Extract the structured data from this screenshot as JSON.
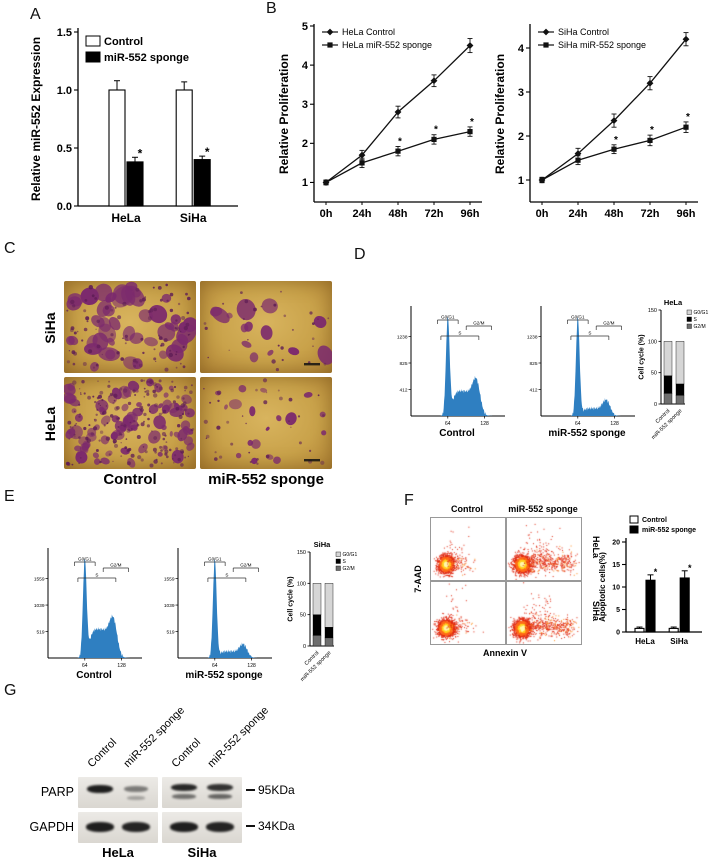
{
  "colors": {
    "histogram": "#2f7fc1",
    "colony": "#7c2a6d",
    "colony_bg": "#c9a24a",
    "flow_core": "#fff8b0",
    "flow_point": "#e02810"
  },
  "panels": {
    "a": "A",
    "b": "B",
    "c": "C",
    "d": "D",
    "e": "E",
    "f": "F",
    "g": "G"
  },
  "panel_c": {
    "row_labels": [
      "SiHa",
      "HeLa"
    ],
    "col_labels": [
      "Control",
      "miR-552 sponge"
    ]
  },
  "panel_f": {
    "col_labels": [
      "Control",
      "miR-552 sponge"
    ],
    "row_labels": [
      "HeLa",
      "SiHa"
    ],
    "xlabel": "Annexin V",
    "ylabel": "7-AAD"
  },
  "panel_g": {
    "lane_labels": [
      "Control",
      "miR-552 sponge",
      "Control",
      "miR-552 sponge"
    ],
    "row_labels": [
      "PARP",
      "GAPDH"
    ],
    "markers": [
      "95KDa",
      "34KDa"
    ],
    "group_labels": [
      "HeLa",
      "SiHa"
    ]
  },
  "chart_data": [
    {
      "id": "mir552_expression",
      "type": "bar",
      "panel": "A",
      "ylabel": "Relative miR-552 Expression",
      "categories": [
        "HeLa",
        "SiHa"
      ],
      "series": [
        {
          "name": "Control",
          "fill": "#ffffff",
          "values": [
            1.0,
            1.0
          ],
          "errors": [
            0.08,
            0.07
          ]
        },
        {
          "name": "miR-552 sponge",
          "fill": "#000000",
          "values": [
            0.38,
            0.4
          ],
          "errors": [
            0.04,
            0.03
          ],
          "sig": [
            "*",
            "*"
          ]
        }
      ],
      "ylim": [
        0,
        1.5
      ],
      "yticks": [
        "0.0",
        "0.5",
        "1.0",
        "1.5"
      ],
      "legend_position": "top-left"
    },
    {
      "id": "hela_proliferation",
      "type": "line",
      "panel": "B",
      "ylabel": "Relative Proliferation",
      "x": [
        "0h",
        "24h",
        "48h",
        "72h",
        "96h"
      ],
      "series": [
        {
          "name": "HeLa Control",
          "marker": "diamond",
          "values": [
            1.0,
            1.7,
            2.8,
            3.6,
            4.5
          ],
          "errors": [
            0.06,
            0.12,
            0.15,
            0.15,
            0.18
          ]
        },
        {
          "name": "HeLa miR-552 sponge",
          "marker": "square",
          "values": [
            1.0,
            1.5,
            1.8,
            2.1,
            2.3
          ],
          "errors": [
            0.06,
            0.12,
            0.12,
            0.12,
            0.12
          ],
          "sig": [
            "",
            "",
            "*",
            "*",
            "*"
          ]
        }
      ],
      "ylim": [
        0.5,
        5
      ],
      "yticks": [
        1,
        2,
        3,
        4,
        5
      ],
      "legend_position": "top-left"
    },
    {
      "id": "siha_proliferation",
      "type": "line",
      "panel": "B",
      "ylabel": "Relative Proliferation",
      "x": [
        "0h",
        "24h",
        "48h",
        "72h",
        "96h"
      ],
      "series": [
        {
          "name": "SiHa Control",
          "marker": "diamond",
          "values": [
            1.0,
            1.6,
            2.35,
            3.2,
            4.2
          ],
          "errors": [
            0.06,
            0.12,
            0.15,
            0.15,
            0.15
          ]
        },
        {
          "name": "SiHa miR-552 sponge",
          "marker": "square",
          "values": [
            1.0,
            1.45,
            1.7,
            1.9,
            2.2
          ],
          "errors": [
            0.06,
            0.1,
            0.1,
            0.12,
            0.12
          ],
          "sig": [
            "",
            "",
            "*",
            "*",
            "*"
          ]
        }
      ],
      "ylim": [
        0.5,
        4.5
      ],
      "yticks": [
        1,
        2,
        3,
        4
      ],
      "legend_position": "top-left"
    },
    {
      "id": "hela_cc_control_hist",
      "type": "flow-histogram",
      "panel": "D",
      "cell_line": "HeLa",
      "title": "Control",
      "xmax": 160,
      "xticks": [
        64,
        128
      ],
      "ymax": 1650,
      "yticks": [
        412,
        825,
        1238
      ],
      "gates": [
        {
          "label": "G0/G1",
          "from": 46,
          "to": 82,
          "dy": 10
        },
        {
          "label": "S",
          "from": 52,
          "to": 118,
          "dy": 26
        },
        {
          "label": "G2/M",
          "from": 96,
          "to": 140,
          "dy": 16
        }
      ],
      "profile": {
        "s": 0.26,
        "g2": 0.3
      }
    },
    {
      "id": "hela_cc_sponge_hist",
      "type": "flow-histogram",
      "panel": "D",
      "cell_line": "HeLa",
      "title": "miR-552 sponge",
      "xmax": 160,
      "xticks": [
        64,
        128
      ],
      "ymax": 1650,
      "yticks": [
        412,
        825,
        1238
      ],
      "gates": [
        {
          "label": "G0/G1",
          "from": 46,
          "to": 82,
          "dy": 10
        },
        {
          "label": "S",
          "from": 52,
          "to": 118,
          "dy": 26
        },
        {
          "label": "G2/M",
          "from": 96,
          "to": 140,
          "dy": 16
        }
      ],
      "profile": {
        "s": 0.08,
        "g2": 0.14
      }
    },
    {
      "id": "hela_cellcycle",
      "type": "stacked-bar",
      "panel": "D",
      "title": "HeLa",
      "ylabel": "Cell cycle (%)",
      "categories": [
        "Control",
        "miR-552 sponge"
      ],
      "series": [
        {
          "name": "G0/G1",
          "color": "#d6d6d6",
          "values": [
            55,
            68
          ]
        },
        {
          "name": "S",
          "color": "#000000",
          "values": [
            28,
            18
          ]
        },
        {
          "name": "G2/M",
          "color": "#6e6e6e",
          "values": [
            17,
            14
          ]
        }
      ],
      "ylim": [
        0,
        150
      ],
      "yticks": [
        0,
        50,
        100,
        150
      ]
    },
    {
      "id": "siha_cc_control_hist",
      "type": "flow-histogram",
      "panel": "E",
      "cell_line": "SiHa",
      "title": "Control",
      "xmax": 160,
      "xticks": [
        64,
        128
      ],
      "ymax": 2080,
      "yticks": [
        519,
        1039,
        1559
      ],
      "gates": [
        {
          "label": "G0/G1",
          "from": 46,
          "to": 82,
          "dy": 10
        },
        {
          "label": "S",
          "from": 52,
          "to": 118,
          "dy": 26
        },
        {
          "label": "G2/M",
          "from": 96,
          "to": 140,
          "dy": 16
        }
      ],
      "profile": {
        "s": 0.3,
        "g2": 0.32
      }
    },
    {
      "id": "siha_cc_sponge_hist",
      "type": "flow-histogram",
      "panel": "E",
      "cell_line": "SiHa",
      "title": "miR-552 sponge",
      "xmax": 160,
      "xticks": [
        64,
        128
      ],
      "ymax": 2080,
      "yticks": [
        519,
        1039,
        1559
      ],
      "gates": [
        {
          "label": "G0/G1",
          "from": 46,
          "to": 82,
          "dy": 10
        },
        {
          "label": "S",
          "from": 52,
          "to": 118,
          "dy": 26
        },
        {
          "label": "G2/M",
          "from": 96,
          "to": 140,
          "dy": 16
        }
      ],
      "profile": {
        "s": 0.07,
        "g2": 0.12
      }
    },
    {
      "id": "siha_cellcycle",
      "type": "stacked-bar",
      "panel": "E",
      "title": "SiHa",
      "ylabel": "Cell cycle (%)",
      "categories": [
        "Control",
        "miR-552 sponge"
      ],
      "series": [
        {
          "name": "G0/G1",
          "color": "#d6d6d6",
          "values": [
            50,
            70
          ]
        },
        {
          "name": "S",
          "color": "#000000",
          "values": [
            33,
            17
          ]
        },
        {
          "name": "G2/M",
          "color": "#6e6e6e",
          "values": [
            17,
            13
          ]
        }
      ],
      "ylim": [
        0,
        150
      ],
      "yticks": [
        0,
        50,
        100,
        150
      ]
    },
    {
      "id": "apoptosis",
      "type": "bar",
      "panel": "F",
      "ylabel": "Apoptotic cells(%)",
      "categories": [
        "HeLa",
        "SiHa"
      ],
      "series": [
        {
          "name": "Control",
          "fill": "#ffffff",
          "values": [
            0.8,
            0.8
          ],
          "errors": [
            0.3,
            0.3
          ]
        },
        {
          "name": "miR-552 sponge",
          "fill": "#000000",
          "values": [
            11.5,
            12.0
          ],
          "errors": [
            1.2,
            1.6
          ],
          "sig": [
            "*",
            "*"
          ]
        }
      ],
      "ylim": [
        0,
        20
      ],
      "yticks": [
        0,
        5,
        10,
        15,
        20
      ],
      "legend_position": "top"
    },
    {
      "id": "apoptosis_flow",
      "type": "flow-scatter",
      "panel": "F",
      "xlabel": "Annexin V",
      "ylabel": "7-AAD",
      "conditions": [
        "Control",
        "miR-552 sponge"
      ],
      "cell_lines": [
        "HeLa",
        "SiHa"
      ]
    }
  ]
}
